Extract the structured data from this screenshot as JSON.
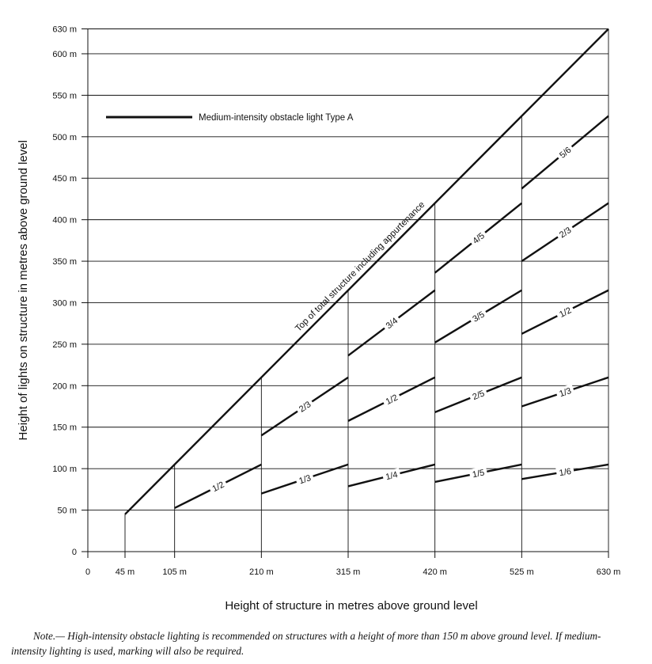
{
  "chart_data": {
    "type": "line",
    "xlabel": "Height of structure in metres above ground level",
    "ylabel": "Height of lights on structure in metres above ground level",
    "xlim": [
      0,
      630
    ],
    "ylim": [
      0,
      630
    ],
    "x_ticks": [
      {
        "value": 0,
        "label": "0"
      },
      {
        "value": 45,
        "label": "45 m"
      },
      {
        "value": 105,
        "label": "105 m"
      },
      {
        "value": 210,
        "label": "210 m"
      },
      {
        "value": 315,
        "label": "315 m"
      },
      {
        "value": 420,
        "label": "420 m"
      },
      {
        "value": 525,
        "label": "525 m"
      },
      {
        "value": 630,
        "label": "630 m"
      }
    ],
    "y_ticks": [
      {
        "value": 0,
        "label": "0"
      },
      {
        "value": 50,
        "label": "50 m"
      },
      {
        "value": 100,
        "label": "100 m"
      },
      {
        "value": 150,
        "label": "150 m"
      },
      {
        "value": 200,
        "label": "200 m"
      },
      {
        "value": 250,
        "label": "250 m"
      },
      {
        "value": 300,
        "label": "300 m"
      },
      {
        "value": 350,
        "label": "350 m"
      },
      {
        "value": 400,
        "label": "400 m"
      },
      {
        "value": 450,
        "label": "450 m"
      },
      {
        "value": 500,
        "label": "500 m"
      },
      {
        "value": 550,
        "label": "550 m"
      },
      {
        "value": 600,
        "label": "600 m"
      },
      {
        "value": 630,
        "label": "630 m"
      }
    ],
    "grid": true,
    "legend": {
      "label": "Medium-intensity obstacle light Type A",
      "position": "top-left"
    },
    "top_line": {
      "label": "Top of total structure including appurtenance",
      "x": [
        45,
        630
      ],
      "y": [
        45,
        630
      ]
    },
    "dividers": [
      45,
      105,
      210,
      315,
      420,
      525,
      630
    ],
    "segments": [
      {
        "label": "1/2",
        "x": [
          105,
          210
        ],
        "y": [
          52.5,
          105
        ]
      },
      {
        "label": "1/3",
        "x": [
          210,
          315
        ],
        "y": [
          70,
          105
        ]
      },
      {
        "label": "2/3",
        "x": [
          210,
          315
        ],
        "y": [
          140,
          210
        ]
      },
      {
        "label": "1/4",
        "x": [
          315,
          420
        ],
        "y": [
          78.75,
          105
        ]
      },
      {
        "label": "1/2",
        "x": [
          315,
          420
        ],
        "y": [
          157.5,
          210
        ]
      },
      {
        "label": "3/4",
        "x": [
          315,
          420
        ],
        "y": [
          236.25,
          315
        ]
      },
      {
        "label": "1/5",
        "x": [
          420,
          525
        ],
        "y": [
          84,
          105
        ]
      },
      {
        "label": "2/5",
        "x": [
          420,
          525
        ],
        "y": [
          168,
          210
        ]
      },
      {
        "label": "3/5",
        "x": [
          420,
          525
        ],
        "y": [
          252,
          315
        ]
      },
      {
        "label": "4/5",
        "x": [
          420,
          525
        ],
        "y": [
          336,
          420
        ]
      },
      {
        "label": "1/6",
        "x": [
          525,
          630
        ],
        "y": [
          87.5,
          105
        ]
      },
      {
        "label": "1/3",
        "x": [
          525,
          630
        ],
        "y": [
          175,
          210
        ]
      },
      {
        "label": "1/2",
        "x": [
          525,
          630
        ],
        "y": [
          262.5,
          315
        ]
      },
      {
        "label": "2/3",
        "x": [
          525,
          630
        ],
        "y": [
          350,
          420
        ]
      },
      {
        "label": "5/6",
        "x": [
          525,
          630
        ],
        "y": [
          437.5,
          525
        ]
      }
    ]
  },
  "note": {
    "prefix": "Note.—",
    "text": "High-intensity obstacle lighting is recommended on structures with a height of more than 150 m above ground level. If medium-intensity lighting is used, marking will also be required."
  }
}
